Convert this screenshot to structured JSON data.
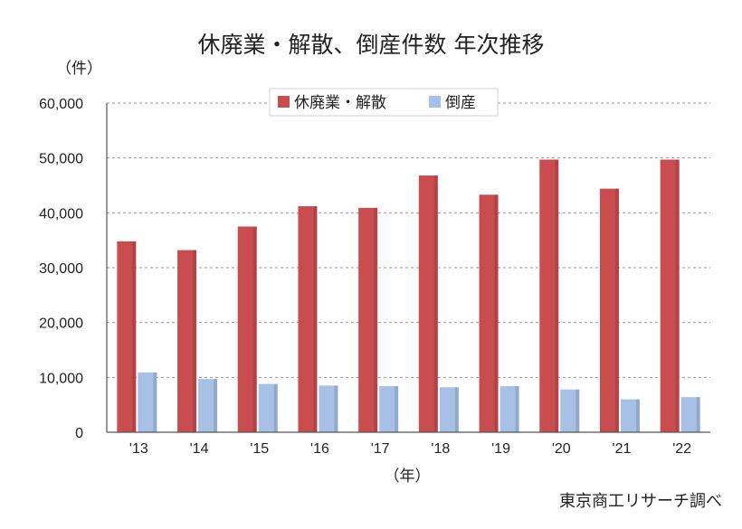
{
  "chart_data": {
    "type": "bar",
    "title": "休廃業・解散、倒産件数 年次推移",
    "y_unit_label": "（件）",
    "x_unit_label": "（年）",
    "source": "東京商工リサーチ調べ",
    "categories": [
      "'13",
      "'14",
      "'15",
      "'16",
      "'17",
      "'18",
      "'19",
      "'20",
      "'21",
      "'22"
    ],
    "series": [
      {
        "name": "休廃業・解散",
        "color": "#c94d4f",
        "values": [
          34800,
          33200,
          37500,
          41200,
          40900,
          46800,
          43300,
          49700,
          44400,
          49700
        ]
      },
      {
        "name": "倒産",
        "color": "#a7c1e6",
        "values": [
          10900,
          9700,
          8800,
          8500,
          8400,
          8200,
          8400,
          7800,
          6000,
          6400
        ]
      }
    ],
    "y_ticks": [
      "0",
      "10,000",
      "20,000",
      "30,000",
      "40,000",
      "50,000",
      "60,000"
    ],
    "ylim": [
      0,
      60000
    ],
    "grid": true,
    "legend_position": "top-center"
  }
}
